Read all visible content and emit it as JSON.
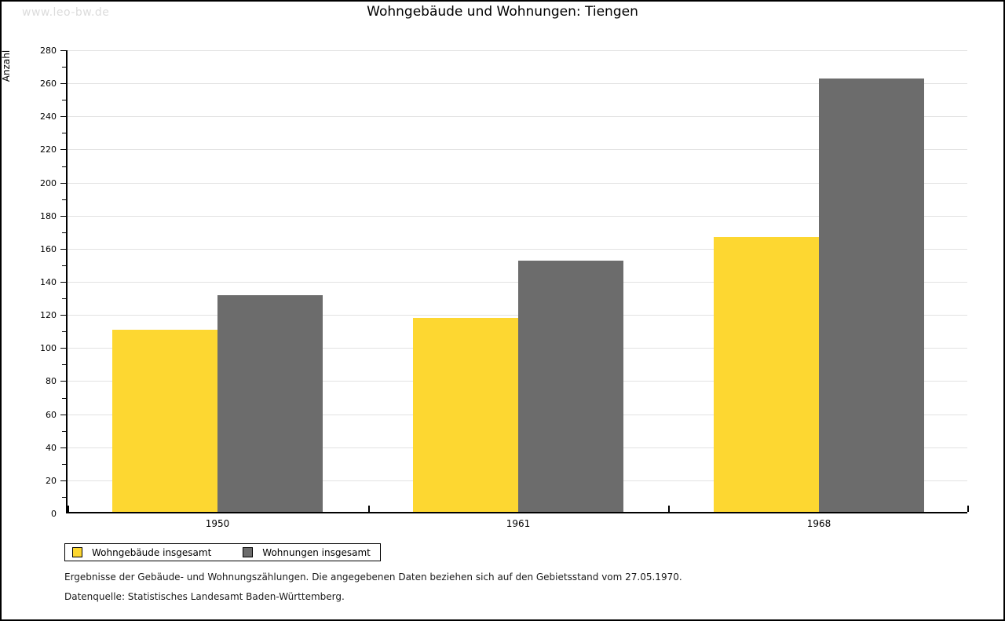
{
  "watermark": "www.leo-bw.de",
  "chart_data": {
    "type": "bar",
    "title": "Wohngebäude und Wohnungen: Tiengen",
    "xlabel": "",
    "ylabel": "Anzahl",
    "categories": [
      "1950",
      "1961",
      "1968"
    ],
    "series": [
      {
        "name": "Wohngebäude insgesamt",
        "color": "#FDD731",
        "values": [
          110,
          117,
          166
        ]
      },
      {
        "name": "Wohnungen insgesamt",
        "color": "#6C6C6C",
        "values": [
          131,
          152,
          262
        ]
      }
    ],
    "ylim": [
      0,
      280
    ],
    "ytick_step": 20,
    "ytick_minor_step": 10,
    "grid": true,
    "legend_position": "bottom-left"
  },
  "footer": {
    "note": "Ergebnisse der Gebäude- und Wohnungszählungen. Die angegebenen Daten beziehen sich auf den Gebietsstand vom 27.05.1970.",
    "source": "Datenquelle: Statistisches Landesamt Baden-Württemberg."
  },
  "colors": {
    "grid": "#e2e2e2",
    "axis": "#000000",
    "watermark": "#dcdcdc",
    "background": "#ffffff"
  }
}
